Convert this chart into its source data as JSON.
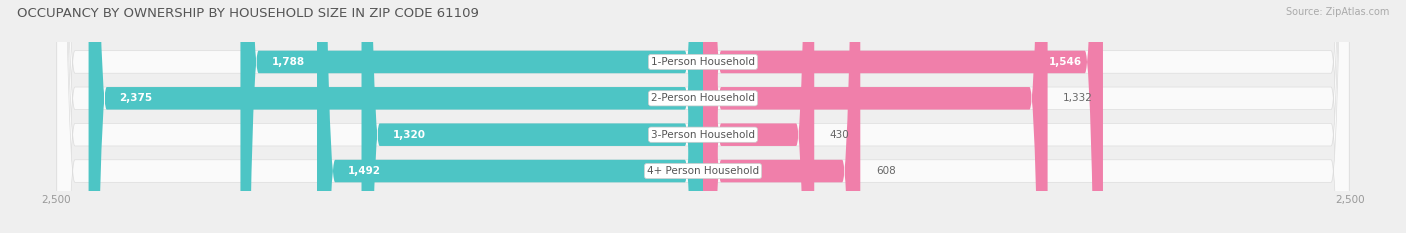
{
  "title": "OCCUPANCY BY OWNERSHIP BY HOUSEHOLD SIZE IN ZIP CODE 61109",
  "source": "Source: ZipAtlas.com",
  "categories": [
    "1-Person Household",
    "2-Person Household",
    "3-Person Household",
    "4+ Person Household"
  ],
  "owner_values": [
    1788,
    2375,
    1320,
    1492
  ],
  "renter_values": [
    1546,
    1332,
    430,
    608
  ],
  "max_val": 2500,
  "owner_color": "#4DC5C5",
  "renter_color": "#F07FAA",
  "owner_color_light": "#A8E3E3",
  "renter_color_light": "#F9B8D0",
  "bg_color": "#EFEFEF",
  "bar_bg_color": "#FAFAFA",
  "title_fontsize": 9.5,
  "label_fontsize": 7.5,
  "tick_fontsize": 7.5,
  "category_fontsize": 7.5,
  "legend_fontsize": 7.5,
  "source_fontsize": 7,
  "owner_label_threshold": 400,
  "renter_label_threshold": 400
}
